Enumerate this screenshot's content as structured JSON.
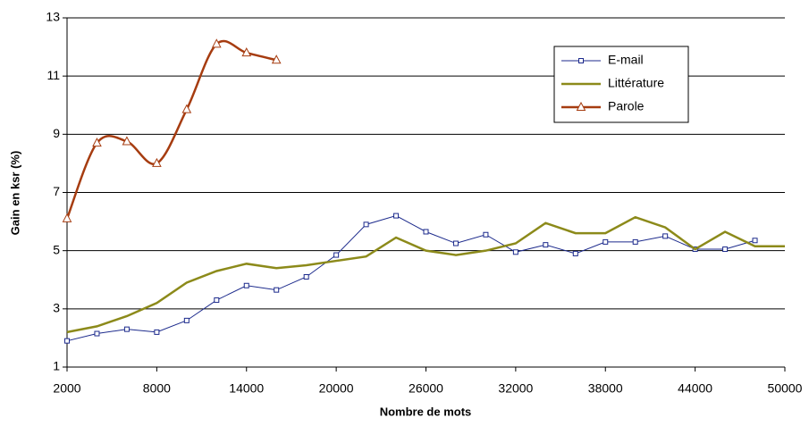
{
  "chart_data": {
    "type": "line",
    "x_label": "Nombre de mots",
    "y_label": "Gain en ksr (%)",
    "xlim": [
      2000,
      50000
    ],
    "xticks": [
      2000,
      8000,
      14000,
      20000,
      26000,
      32000,
      38000,
      44000,
      50000
    ],
    "ylim": [
      1,
      13
    ],
    "yticks": [
      1,
      3,
      5,
      7,
      9,
      11,
      13
    ],
    "grid": true,
    "legend": "upper right",
    "series": [
      {
        "name": "E-mail",
        "color": "#1c2a8c",
        "marker": "square",
        "smooth": false,
        "x": [
          2000,
          4000,
          6000,
          8000,
          10000,
          12000,
          14000,
          16000,
          18000,
          20000,
          22000,
          24000,
          26000,
          28000,
          30000,
          32000,
          34000,
          36000,
          38000,
          40000,
          42000,
          44000,
          46000,
          48000
        ],
        "values": [
          1.9,
          2.15,
          2.3,
          2.2,
          2.6,
          3.3,
          3.8,
          3.65,
          4.1,
          4.85,
          5.9,
          6.2,
          5.65,
          5.25,
          5.55,
          4.95,
          5.2,
          4.9,
          5.3,
          5.3,
          5.5,
          5.05,
          5.05,
          5.35
        ]
      },
      {
        "name": "Littérature",
        "color": "#8c8a1a",
        "marker": "none",
        "smooth": false,
        "x": [
          2000,
          4000,
          6000,
          8000,
          10000,
          12000,
          14000,
          16000,
          18000,
          20000,
          22000,
          24000,
          26000,
          28000,
          30000,
          32000,
          34000,
          36000,
          38000,
          40000,
          42000,
          44000,
          46000,
          48000,
          50000
        ],
        "values": [
          2.2,
          2.4,
          2.75,
          3.2,
          3.9,
          4.3,
          4.55,
          4.4,
          4.5,
          4.65,
          4.8,
          5.45,
          5.0,
          4.85,
          5.0,
          5.25,
          5.95,
          5.6,
          5.6,
          6.15,
          5.8,
          5.05,
          5.65,
          5.15,
          5.15
        ]
      },
      {
        "name": "Parole",
        "color": "#a63c10",
        "marker": "triangle",
        "smooth": true,
        "x": [
          2000,
          4000,
          6000,
          8000,
          10000,
          12000,
          14000,
          16000
        ],
        "values": [
          6.1,
          8.7,
          8.75,
          8.0,
          9.85,
          12.1,
          11.8,
          11.55
        ]
      }
    ]
  }
}
